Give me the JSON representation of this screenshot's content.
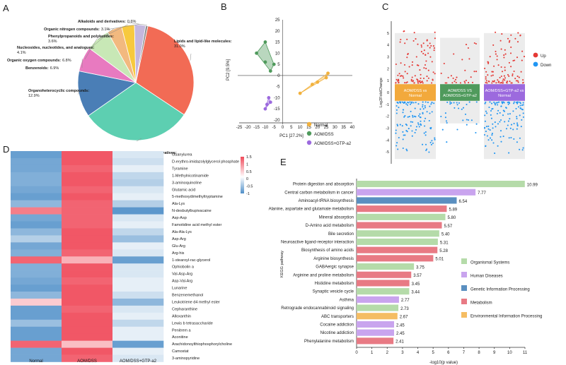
{
  "figure": {
    "panel_letters": [
      "A",
      "B",
      "C",
      "D",
      "E"
    ]
  },
  "chart_data": [
    {
      "panel": "A",
      "type": "pie",
      "title": "",
      "labels": [
        "Lipids and lipid-like molecules:",
        "Organic acids and derivatives:",
        "Organoheterocyclic compounds:",
        "Benzenoids:",
        "Organic oxygen compounds:",
        "Nucleosides, nucleotides, and analogues:",
        "Phenylpropanoids and polyketides:",
        "Organic nitrogen compounds:",
        "Alkaloids and derivatives:"
      ],
      "values": [
        31.0,
        30.9,
        12.9,
        6.9,
        6.8,
        4.1,
        3.6,
        3.1,
        0.6
      ],
      "value_labels": [
        "31.0%",
        "30.9%",
        "12.9%",
        "6.9%",
        "6.8%",
        "4.1%",
        "3.6%",
        "3.1%",
        "0.6%"
      ],
      "colors": [
        "#f26b55",
        "#5dcfb1",
        "#4a7eb6",
        "#e87ac0",
        "#c8e8b6",
        "#f2b97f",
        "#f7c93e",
        "#c4b7de",
        "#8c8c8c"
      ]
    },
    {
      "panel": "B",
      "type": "scatter",
      "xlabel": "PC1 [27.2%]",
      "ylabel": "PC2 [9.5%]",
      "xlim": [
        -25,
        40
      ],
      "ylim": [
        -20,
        25
      ],
      "xticks": [
        -25,
        -20,
        -15,
        -10,
        -5,
        0,
        5,
        10,
        15,
        20,
        25,
        30,
        35,
        40
      ],
      "yticks": [
        -20,
        -15,
        -10,
        -5,
        0,
        5,
        10,
        15,
        20,
        25
      ],
      "series": [
        {
          "name": "Normal",
          "color": "#f2b13c",
          "points": [
            [
              10,
              -8
            ],
            [
              17,
              -4
            ],
            [
              20,
              -3
            ],
            [
              25,
              -1
            ],
            [
              26,
              1
            ]
          ]
        },
        {
          "name": "AOM/DSS",
          "color": "#4f9a5c",
          "points": [
            [
              -15,
              10
            ],
            [
              -10,
              15
            ],
            [
              -10,
              6
            ],
            [
              -7,
              2
            ],
            [
              -5,
              5
            ]
          ]
        },
        {
          "name": "AOM/DSS+GTP-a2",
          "color": "#9c6ade",
          "points": [
            [
              -10,
              -15
            ],
            [
              -9,
              -13
            ],
            [
              -8,
              -10
            ],
            [
              -7,
              -12
            ]
          ]
        }
      ]
    },
    {
      "panel": "C",
      "type": "scatter",
      "ylabel": "Log2FoldChange",
      "ylim": [
        -6,
        6
      ],
      "yticks": [
        -5,
        -4,
        -3,
        -2,
        -1,
        0,
        1,
        2,
        3,
        4,
        5
      ],
      "groups": [
        "AOM/DSS vs Normal",
        "AOM/DSS VS AOM/DSS+GTP-a2",
        "AOM/DSS+GTP-a2 vs Normal"
      ],
      "group_colors": [
        "#f2a93c",
        "#4f9a5c",
        "#9c6ade"
      ],
      "legend": [
        {
          "name": "Up",
          "color": "#e53935"
        },
        {
          "name": "Down",
          "color": "#2196f3"
        }
      ]
    },
    {
      "panel": "D",
      "type": "heatmap",
      "columns": [
        "Normal",
        "AOM/DSS",
        "AOM/DSS+GTP-a2"
      ],
      "rows": [
        "Guanylurea",
        "D-erythro-imidazolylglycerol phosphate",
        "Tyramine",
        "1-Methylnicotinamide",
        "3-aminoquinoline",
        "Glutamic acid",
        "5-methoxydimethyltryptamine",
        "Ala-Lys",
        "N-desbutylbupivacaine",
        "Asp-Asp",
        "Famotidine acid methyl ester",
        "Ala-Ala-Lys",
        "Asp-Arg",
        "Glu-Arg",
        "Arg-his",
        "1-stearoyl-rac-glycerol",
        "Ophiobolin a",
        "Val-Asp-Arg",
        "Asp-Val-Arg",
        "Lunarine",
        "Benzenemethanol",
        "Leukotriene d4 methyl ester",
        "Cepharanthine",
        "Alloxanthin",
        "Lewis b tetrasaccharide",
        "Penitrem a",
        "Aconitine",
        "Arachidonoylthiophosphorylcholine",
        "Camostat",
        "3-aminopyridine"
      ],
      "values": [
        [
          -1.2,
          1.3,
          -0.3
        ],
        [
          -1.1,
          1.3,
          -0.4
        ],
        [
          -1.1,
          1.2,
          -0.2
        ],
        [
          -1.0,
          1.3,
          -0.5
        ],
        [
          -1.0,
          1.3,
          -0.6
        ],
        [
          -1.1,
          1.2,
          -0.3
        ],
        [
          -1.2,
          1.3,
          -0.2
        ],
        [
          -0.9,
          1.2,
          -0.6
        ],
        [
          1.0,
          1.2,
          -1.3
        ],
        [
          -1.1,
          1.2,
          -0.3
        ],
        [
          -1.2,
          1.2,
          -0.2
        ],
        [
          -0.9,
          1.3,
          -0.5
        ],
        [
          -0.6,
          1.3,
          -0.8
        ],
        [
          -1.1,
          1.3,
          -0.2
        ],
        [
          -1.0,
          1.2,
          -0.3
        ],
        [
          1.2,
          0.6,
          -1.2
        ],
        [
          -1.0,
          1.3,
          -0.3
        ],
        [
          -1.0,
          1.3,
          -0.3
        ],
        [
          -1.1,
          1.2,
          -0.2
        ],
        [
          -1.2,
          1.3,
          -0.2
        ],
        [
          -0.9,
          1.3,
          -0.4
        ],
        [
          0.4,
          1.3,
          -0.9
        ],
        [
          -1.2,
          1.2,
          -0.3
        ],
        [
          -1.2,
          1.3,
          -0.2
        ],
        [
          -0.8,
          1.3,
          -0.5
        ],
        [
          -1.2,
          1.3,
          -0.2
        ],
        [
          -1.2,
          1.3,
          -0.2
        ],
        [
          1.2,
          0.5,
          -1.2
        ],
        [
          -1.1,
          1.3,
          -0.2
        ],
        [
          -1.1,
          1.2,
          -0.3
        ]
      ],
      "colorbar_ticks": [
        "1.5",
        "1",
        "0.5",
        "0",
        "-0.5",
        "-1"
      ],
      "colorbar_values": [
        1.5,
        1,
        0.5,
        0,
        -0.5,
        -1
      ],
      "colormap": {
        "low": "#4f8fc8",
        "mid": "#ffffff",
        "high": "#f04a5a"
      }
    },
    {
      "panel": "E",
      "type": "bar",
      "orientation": "horizontal",
      "ylabel": "KEGG pathway",
      "xlabel": "-log10(p value)",
      "xlim": [
        0,
        11
      ],
      "xticks": [
        0,
        1,
        2,
        3,
        4,
        5,
        6,
        7,
        8,
        9,
        10,
        11
      ],
      "categories": [
        "Protein digestion and absorption",
        "Central carbon metabolism in cancer",
        "Aminoacyl-tRNA biosynthesis",
        "Alanine, aspartate and glutamate metabolism",
        "Mineral absorption",
        "D-Amino acid metabolism",
        "Bile secretion",
        "Neuroactive ligand-receptor interaction",
        "Biosynthesis of amino acids",
        "Arginine biosynthesis",
        "GABAergic synapse",
        "Arginine and proline metabolism",
        "Histidine metabolism",
        "Synaptic vesicle cycle",
        "Asthma",
        "Retrograde endocannabinoid signaling",
        "ABC transporters",
        "Cocaine addiction",
        "Nicotine addiction",
        "Phenylalanine metabolism"
      ],
      "values": [
        10.99,
        7.77,
        6.54,
        5.89,
        5.8,
        5.57,
        5.4,
        5.31,
        5.28,
        5.01,
        3.75,
        3.57,
        3.45,
        3.44,
        2.77,
        2.73,
        2.67,
        2.45,
        2.45,
        2.41
      ],
      "value_labels": [
        "10.99",
        "7.77",
        "6.54",
        "5.89",
        "5.80",
        "5.57",
        "5.40",
        "5.31",
        "5.28",
        "5.01",
        "3.75",
        "3.57",
        "3.45",
        "3.44",
        "2.77",
        "2.73",
        "2.67",
        "2.45",
        "2.45",
        "2.41"
      ],
      "groups": [
        0,
        1,
        2,
        3,
        0,
        3,
        0,
        0,
        3,
        3,
        0,
        3,
        3,
        0,
        1,
        0,
        4,
        1,
        1,
        3
      ],
      "legend": [
        {
          "name": "Organismal Systems",
          "color": "#b5dba9"
        },
        {
          "name": "Human Diseases",
          "color": "#c9a4ee"
        },
        {
          "name": "Genetic Information Processing",
          "color": "#5a8fc0"
        },
        {
          "name": "Metabolism",
          "color": "#e87a84"
        },
        {
          "name": "Environmental Information Processing",
          "color": "#f5bd63"
        }
      ]
    }
  ]
}
